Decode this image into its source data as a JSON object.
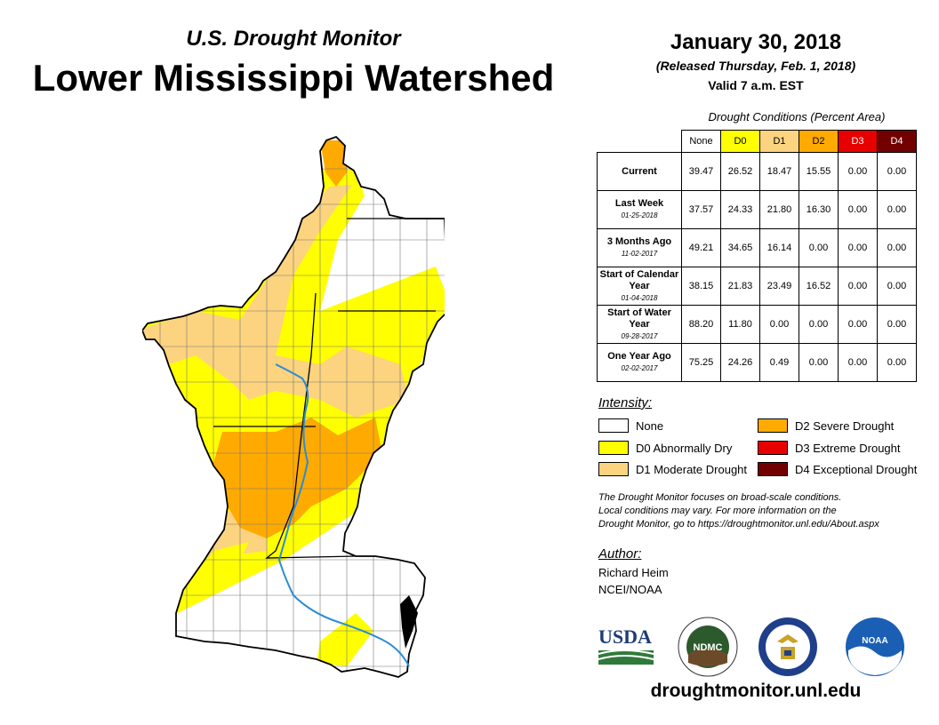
{
  "header": {
    "subtitle": "U.S. Drought Monitor",
    "title": "Lower Mississippi Watershed",
    "date": "January 30, 2018",
    "released": "(Released Thursday, Feb. 1, 2018)",
    "valid": "Valid 7 a.m. EST"
  },
  "table": {
    "caption": "Drought Conditions (Percent Area)",
    "columns": [
      "None",
      "D0",
      "D1",
      "D2",
      "D3",
      "D4"
    ],
    "column_colors": [
      "#ffffff",
      "#ffff00",
      "#fcd37f",
      "#ffaa00",
      "#e60000",
      "#730000"
    ],
    "rows": [
      {
        "label": "Current",
        "date": "",
        "values": [
          "39.47",
          "26.52",
          "18.47",
          "15.55",
          "0.00",
          "0.00"
        ]
      },
      {
        "label": "Last Week",
        "date": "01-25-2018",
        "values": [
          "37.57",
          "24.33",
          "21.80",
          "16.30",
          "0.00",
          "0.00"
        ]
      },
      {
        "label": "3 Months Ago",
        "date": "11-02-2017",
        "values": [
          "49.21",
          "34.65",
          "16.14",
          "0.00",
          "0.00",
          "0.00"
        ]
      },
      {
        "label": "Start of Calendar Year",
        "date": "01-04-2018",
        "values": [
          "38.15",
          "21.83",
          "23.49",
          "16.52",
          "0.00",
          "0.00"
        ]
      },
      {
        "label": "Start of Water Year",
        "date": "09-28-2017",
        "values": [
          "88.20",
          "11.80",
          "0.00",
          "0.00",
          "0.00",
          "0.00"
        ]
      },
      {
        "label": "One Year Ago",
        "date": "02-02-2017",
        "values": [
          "75.25",
          "24.26",
          "0.49",
          "0.00",
          "0.00",
          "0.00"
        ]
      }
    ]
  },
  "legend": {
    "heading": "Intensity:",
    "items": [
      {
        "label": "None",
        "color": "#ffffff"
      },
      {
        "label": "D0 Abnormally Dry",
        "color": "#ffff00"
      },
      {
        "label": "D1 Moderate Drought",
        "color": "#fcd37f"
      },
      {
        "label": "D2 Severe Drought",
        "color": "#ffaa00"
      },
      {
        "label": "D3 Extreme Drought",
        "color": "#e60000"
      },
      {
        "label": "D4 Exceptional Drought",
        "color": "#730000"
      }
    ]
  },
  "note": {
    "line1": "The Drought Monitor focuses on broad-scale conditions.",
    "line2": "Local conditions may vary. For more information on the",
    "line3": "Drought Monitor, go to https://droughtmonitor.unl.edu/About.aspx"
  },
  "author": {
    "heading": "Author:",
    "name": "Richard Heim",
    "org": "NCEI/NOAA"
  },
  "logos": {
    "usda": "USDA",
    "ndmc": "NDMC",
    "noaa": "NOAA"
  },
  "website": "droughtmonitor.unl.edu"
}
